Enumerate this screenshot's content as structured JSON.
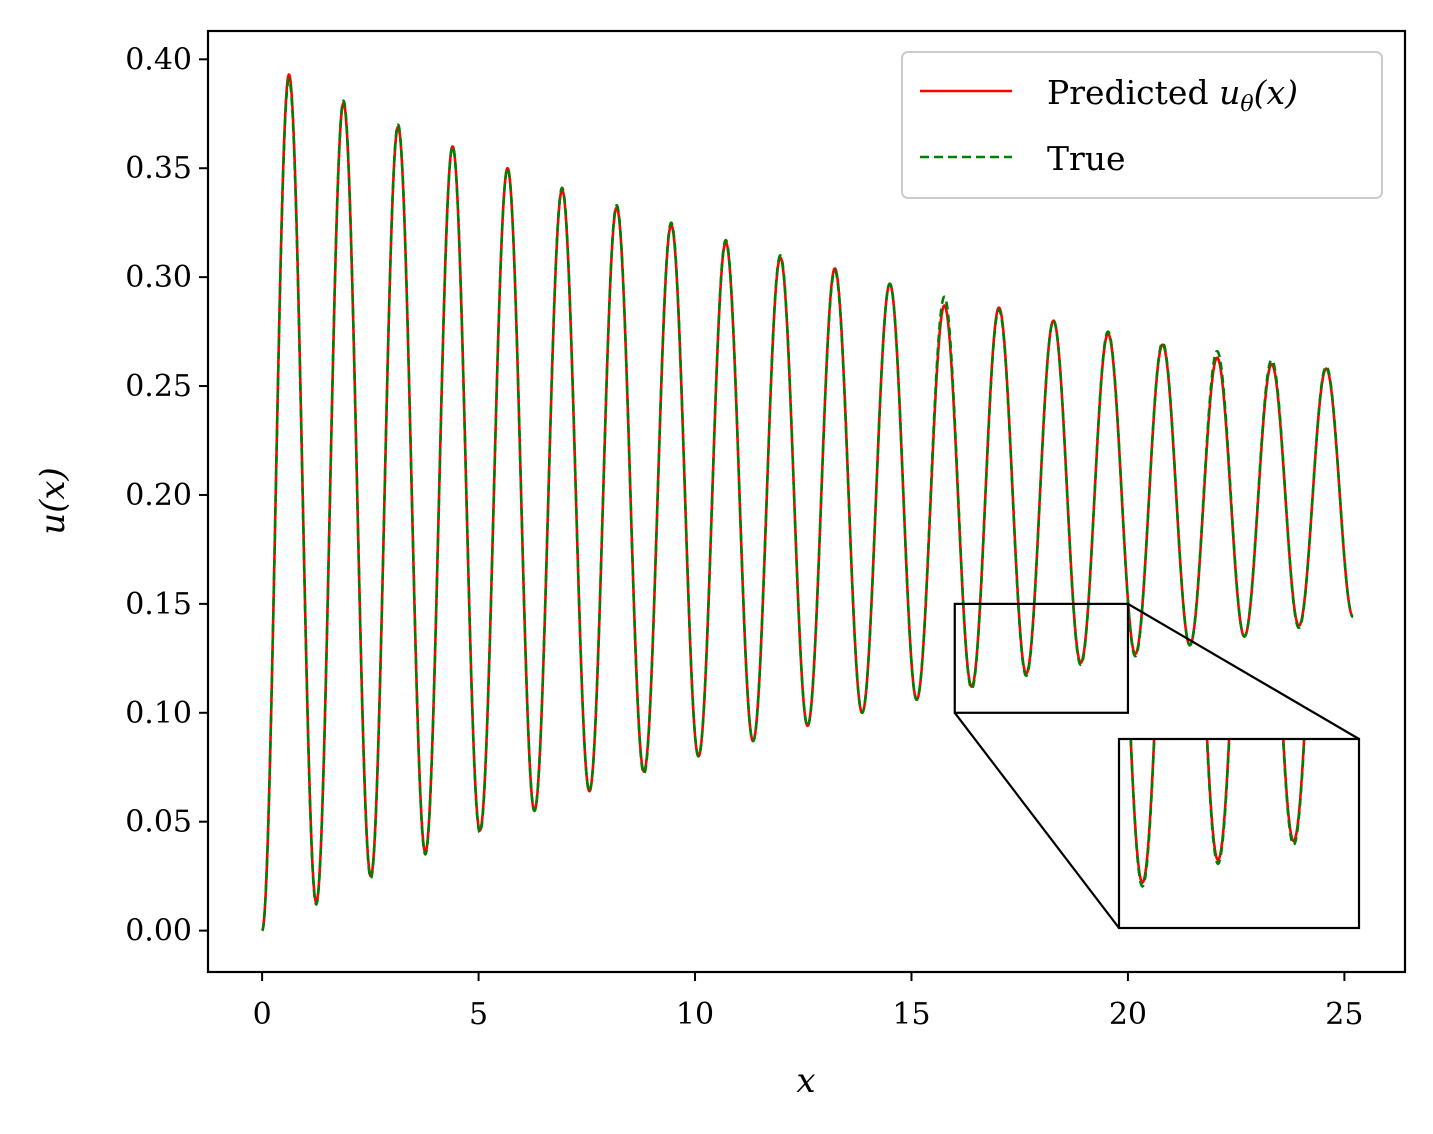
{
  "chart_data": {
    "type": "line",
    "title": "",
    "xlabel": "x",
    "ylabel": "u(x)",
    "xlim": [
      -1.25,
      26.4
    ],
    "ylim": [
      -0.019,
      0.413
    ],
    "x_ticks": [
      0,
      5,
      10,
      15,
      20,
      25
    ],
    "x_tick_labels": [
      "0",
      "5",
      "10",
      "15",
      "20",
      "25"
    ],
    "y_ticks": [
      0.0,
      0.05,
      0.1,
      0.15,
      0.2,
      0.25,
      0.3,
      0.35,
      0.4
    ],
    "y_tick_labels": [
      "0.00",
      "0.05",
      "0.10",
      "0.15",
      "0.20",
      "0.25",
      "0.30",
      "0.35",
      "0.40"
    ],
    "x_range": [
      0,
      25.2
    ],
    "initial_value": 0.0,
    "final_value": 0.144,
    "series": [
      {
        "name": "Predicted u_θ(x)",
        "label_main": "Predicted ",
        "label_math": "u",
        "label_sub": "θ",
        "label_tail": "(x)",
        "color": "#ff0000",
        "style": "solid",
        "peaks": [
          [
            0.62,
            0.393
          ],
          [
            1.88,
            0.38
          ],
          [
            3.14,
            0.369
          ],
          [
            4.4,
            0.36
          ],
          [
            5.67,
            0.35
          ],
          [
            6.93,
            0.34
          ],
          [
            8.19,
            0.332
          ],
          [
            9.45,
            0.324
          ],
          [
            10.71,
            0.316
          ],
          [
            11.97,
            0.309
          ],
          [
            13.23,
            0.304
          ],
          [
            14.5,
            0.297
          ],
          [
            15.76,
            0.287
          ],
          [
            17.02,
            0.286
          ],
          [
            18.28,
            0.28
          ],
          [
            19.54,
            0.274
          ],
          [
            20.8,
            0.269
          ],
          [
            22.06,
            0.263
          ],
          [
            23.32,
            0.26
          ],
          [
            24.58,
            0.258
          ]
        ],
        "troughs": [
          [
            1.25,
            0.013
          ],
          [
            2.51,
            0.025
          ],
          [
            3.77,
            0.036
          ],
          [
            5.03,
            0.046
          ],
          [
            6.29,
            0.055
          ],
          [
            7.56,
            0.064
          ],
          [
            8.82,
            0.073
          ],
          [
            10.08,
            0.08
          ],
          [
            11.34,
            0.087
          ],
          [
            12.6,
            0.094
          ],
          [
            13.86,
            0.1
          ],
          [
            15.12,
            0.106
          ],
          [
            16.39,
            0.112
          ],
          [
            17.65,
            0.118
          ],
          [
            18.91,
            0.123
          ],
          [
            20.17,
            0.127
          ],
          [
            21.43,
            0.131
          ],
          [
            22.69,
            0.135
          ],
          [
            23.95,
            0.14
          ]
        ]
      },
      {
        "name": "True",
        "color": "#008000",
        "style": "dashed",
        "peaks": [
          [
            0.62,
            0.391
          ],
          [
            1.88,
            0.381
          ],
          [
            3.14,
            0.37
          ],
          [
            4.4,
            0.36
          ],
          [
            5.67,
            0.35
          ],
          [
            6.93,
            0.341
          ],
          [
            8.19,
            0.333
          ],
          [
            9.45,
            0.325
          ],
          [
            10.71,
            0.317
          ],
          [
            11.97,
            0.31
          ],
          [
            13.23,
            0.303
          ],
          [
            14.5,
            0.297
          ],
          [
            15.76,
            0.291
          ],
          [
            17.02,
            0.285
          ],
          [
            18.28,
            0.28
          ],
          [
            19.54,
            0.275
          ],
          [
            20.8,
            0.27
          ],
          [
            22.06,
            0.266
          ],
          [
            23.32,
            0.262
          ],
          [
            24.58,
            0.259
          ]
        ],
        "troughs": [
          [
            1.25,
            0.012
          ],
          [
            2.51,
            0.024
          ],
          [
            3.77,
            0.035
          ],
          [
            5.03,
            0.045
          ],
          [
            6.29,
            0.055
          ],
          [
            7.56,
            0.064
          ],
          [
            8.82,
            0.072
          ],
          [
            10.08,
            0.08
          ],
          [
            11.34,
            0.087
          ],
          [
            12.6,
            0.094
          ],
          [
            13.86,
            0.1
          ],
          [
            15.12,
            0.106
          ],
          [
            16.39,
            0.111
          ],
          [
            17.65,
            0.117
          ],
          [
            18.91,
            0.122
          ],
          [
            20.17,
            0.126
          ],
          [
            21.43,
            0.131
          ],
          [
            22.69,
            0.135
          ],
          [
            23.95,
            0.139
          ]
        ]
      }
    ],
    "inset": {
      "x_range": [
        16,
        20
      ],
      "y_range": [
        0.1,
        0.15
      ],
      "placement": "bottom-right"
    },
    "legend": {
      "placement": "top-right"
    }
  }
}
